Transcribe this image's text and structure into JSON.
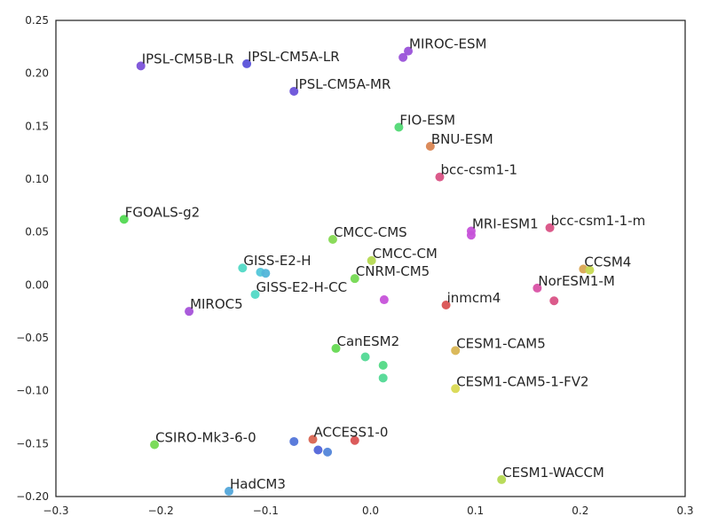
{
  "chart_data": {
    "type": "scatter",
    "title": "",
    "xlabel": "",
    "ylabel": "",
    "xlim": [
      -0.3,
      0.3
    ],
    "ylim": [
      -0.2,
      0.25
    ],
    "grid": false,
    "x_ticks": [
      -0.3,
      -0.2,
      -0.1,
      0.0,
      0.1,
      0.2,
      0.3
    ],
    "x_tick_labels": [
      "−0.3",
      "−0.2",
      "−0.1",
      "0.0",
      "0.1",
      "0.2",
      "0.3"
    ],
    "y_ticks": [
      -0.2,
      -0.15,
      -0.1,
      -0.05,
      0.0,
      0.05,
      0.1,
      0.15,
      0.2,
      0.25
    ],
    "y_tick_labels": [
      "−0.20",
      "−0.15",
      "−0.10",
      "−0.05",
      "0.00",
      "0.05",
      "0.10",
      "0.15",
      "0.20",
      "0.25"
    ],
    "points": [
      {
        "label": "IPSL-CM5B-LR",
        "x": -0.219,
        "y": 0.207,
        "color": "#7b52d9"
      },
      {
        "label": "IPSL-CM5A-LR",
        "x": -0.118,
        "y": 0.209,
        "color": "#5a52d9"
      },
      {
        "label": "IPSL-CM5A-MR",
        "x": -0.073,
        "y": 0.183,
        "color": "#6a52d9"
      },
      {
        "label": "MIROC-ESM",
        "x": 0.036,
        "y": 0.221,
        "color": "#9a52d9"
      },
      {
        "label": "",
        "x": 0.031,
        "y": 0.215,
        "color": "#9a52d9"
      },
      {
        "label": "FIO-ESM",
        "x": 0.027,
        "y": 0.149,
        "color": "#52d975"
      },
      {
        "label": "BNU-ESM",
        "x": 0.057,
        "y": 0.131,
        "color": "#d98552"
      },
      {
        "label": "bcc-csm1-1",
        "x": 0.066,
        "y": 0.102,
        "color": "#d95285"
      },
      {
        "label": "FGOALS-g2",
        "x": -0.235,
        "y": 0.062,
        "color": "#52d952"
      },
      {
        "label": "CMCC-CMS",
        "x": -0.036,
        "y": 0.043,
        "color": "#85d952"
      },
      {
        "label": "MRI-ESM1",
        "x": 0.096,
        "y": 0.051,
        "color": "#c652d9"
      },
      {
        "label": "",
        "x": 0.096,
        "y": 0.047,
        "color": "#c652d9"
      },
      {
        "label": "bcc-csm1-1-m",
        "x": 0.171,
        "y": 0.054,
        "color": "#d95285"
      },
      {
        "label": "GISS-E2-H",
        "x": -0.122,
        "y": 0.016,
        "color": "#52d9c6"
      },
      {
        "label": "",
        "x": -0.105,
        "y": 0.012,
        "color": "#52c6d9"
      },
      {
        "label": "",
        "x": -0.1,
        "y": 0.011,
        "color": "#52b5d9"
      },
      {
        "label": "CMCC-CM",
        "x": 0.001,
        "y": 0.023,
        "color": "#b5d952"
      },
      {
        "label": "CNRM-CM5",
        "x": -0.015,
        "y": 0.006,
        "color": "#75d952"
      },
      {
        "label": "CCSM4",
        "x": 0.203,
        "y": 0.015,
        "color": "#d9a552"
      },
      {
        "label": "",
        "x": 0.209,
        "y": 0.014,
        "color": "#c6d952"
      },
      {
        "label": "NorESM1-M",
        "x": 0.159,
        "y": -0.003,
        "color": "#d952a5"
      },
      {
        "label": "",
        "x": 0.175,
        "y": -0.015,
        "color": "#d95285"
      },
      {
        "label": "GISS-E2-H-CC",
        "x": -0.11,
        "y": -0.009,
        "color": "#52d9c6"
      },
      {
        "label": "MIROC5",
        "x": -0.173,
        "y": -0.025,
        "color": "#a552d9"
      },
      {
        "label": "",
        "x": 0.013,
        "y": -0.014,
        "color": "#c652d9"
      },
      {
        "label": "inmcm4",
        "x": 0.072,
        "y": -0.019,
        "color": "#d95252"
      },
      {
        "label": "CanESM2",
        "x": -0.033,
        "y": -0.06,
        "color": "#65d952"
      },
      {
        "label": "",
        "x": -0.005,
        "y": -0.068,
        "color": "#52d995"
      },
      {
        "label": "",
        "x": 0.012,
        "y": -0.076,
        "color": "#52d985"
      },
      {
        "label": "",
        "x": 0.012,
        "y": -0.088,
        "color": "#52d995"
      },
      {
        "label": "CESM1-CAM5",
        "x": 0.081,
        "y": -0.062,
        "color": "#d9b552"
      },
      {
        "label": "CESM1-CAM5-1-FV2",
        "x": 0.081,
        "y": -0.098,
        "color": "#d9d952"
      },
      {
        "label": "CSIRO-Mk3-6-0",
        "x": -0.206,
        "y": -0.151,
        "color": "#75d952"
      },
      {
        "label": "",
        "x": -0.073,
        "y": -0.148,
        "color": "#5275d9"
      },
      {
        "label": "ACCESS1-0",
        "x": -0.055,
        "y": -0.146,
        "color": "#d96552"
      },
      {
        "label": "",
        "x": -0.015,
        "y": -0.147,
        "color": "#d95252"
      },
      {
        "label": "",
        "x": -0.05,
        "y": -0.156,
        "color": "#5265d9"
      },
      {
        "label": "",
        "x": -0.041,
        "y": -0.158,
        "color": "#5285d9"
      },
      {
        "label": "CESM1-WACCM",
        "x": 0.125,
        "y": -0.184,
        "color": "#b5d952"
      },
      {
        "label": "HadCM3",
        "x": -0.135,
        "y": -0.195,
        "color": "#52a5d9"
      }
    ]
  }
}
